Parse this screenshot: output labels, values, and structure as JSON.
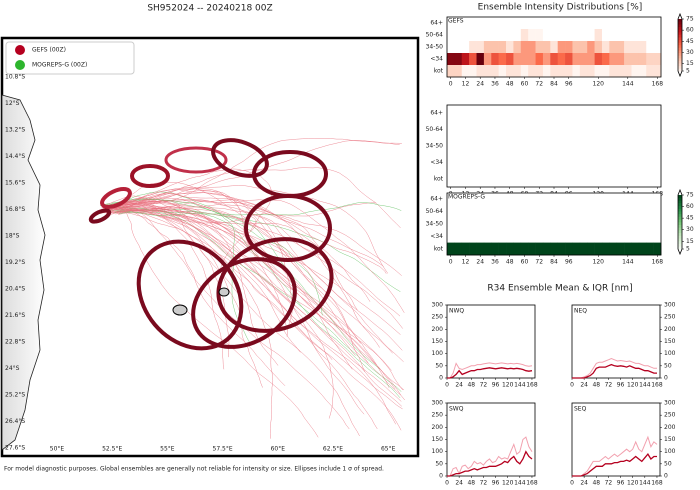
{
  "map": {
    "title": "SH952024 -- 20240218 00Z",
    "legend": [
      {
        "name": "GEFS (00Z)",
        "color": "#b5001f"
      },
      {
        "name": "MOGREPS-G (00Z)",
        "color": "#2db52d"
      }
    ],
    "lat_labels": [
      "10.8°S",
      "12°S",
      "13.2°S",
      "14.4°S",
      "15.6°S",
      "16.8°S",
      "18°S",
      "19.2°S",
      "20.4°S",
      "21.6°S",
      "22.8°S",
      "24°S",
      "25.2°S",
      "26.4°S",
      "27.6°S"
    ],
    "lon_labels": [
      "50°E",
      "52.5°E",
      "55°E",
      "57.5°E",
      "60°E",
      "62.5°E",
      "65°E"
    ],
    "footer": "For model diagnostic purposes. Global ensembles are generally not reliable for intensity or size. Ellipses include 1 σ of spread."
  },
  "intensity": {
    "title": "Ensemble Intensity Distributions [%]",
    "row_labels": [
      "64+",
      "50-64",
      "34-50",
      "<34",
      "kot"
    ],
    "hours": [
      0,
      6,
      12,
      18,
      24,
      30,
      36,
      42,
      48,
      54,
      60,
      66,
      72,
      78,
      84,
      90,
      96,
      102,
      108,
      114,
      120,
      126,
      132,
      138,
      144,
      150,
      156,
      162,
      168
    ],
    "xticks": [
      0,
      12,
      24,
      36,
      48,
      60,
      72,
      84,
      96,
      120,
      144,
      168
    ],
    "panels": [
      {
        "label": "GEFS",
        "colormap": "Reds",
        "colorbar_ticks": [
          75,
          60,
          45,
          30,
          15,
          5
        ],
        "rows": [
          [
            0,
            0,
            0,
            0,
            0,
            0,
            0,
            0,
            0,
            0,
            0,
            0,
            0,
            0,
            0,
            0,
            0,
            0,
            0,
            0,
            0,
            0,
            0,
            0,
            0,
            0,
            0,
            0,
            0
          ],
          [
            0,
            0,
            0,
            0,
            0,
            0,
            0,
            0,
            0,
            0,
            10,
            5,
            5,
            0,
            0,
            0,
            0,
            0,
            0,
            0,
            10,
            0,
            0,
            0,
            0,
            0,
            0,
            0,
            0
          ],
          [
            0,
            0,
            0,
            10,
            10,
            20,
            20,
            20,
            10,
            20,
            30,
            30,
            20,
            20,
            10,
            30,
            30,
            20,
            20,
            30,
            20,
            10,
            20,
            20,
            10,
            10,
            10,
            0,
            0
          ],
          [
            70,
            70,
            60,
            45,
            75,
            30,
            45,
            40,
            45,
            30,
            30,
            30,
            40,
            30,
            45,
            40,
            45,
            30,
            30,
            30,
            45,
            40,
            30,
            30,
            20,
            20,
            20,
            15,
            15
          ],
          [
            15,
            15,
            5,
            5,
            10,
            10,
            10,
            5,
            10,
            10,
            5,
            10,
            10,
            5,
            10,
            10,
            10,
            5,
            10,
            10,
            5,
            5,
            10,
            10,
            10,
            5,
            5,
            10,
            10
          ]
        ]
      },
      {
        "rows": []
      },
      {
        "label": "MOGREPS-G",
        "colormap": "Greens",
        "colorbar_ticks": [
          75,
          60,
          45,
          30,
          15,
          5
        ],
        "rows": [
          [
            0,
            0,
            0,
            0,
            0,
            0,
            0,
            0,
            0,
            0,
            0,
            0,
            0,
            0,
            0,
            0,
            0,
            0,
            0,
            0,
            0,
            0,
            0,
            0,
            0,
            0,
            0,
            0,
            0
          ],
          [
            0,
            0,
            0,
            0,
            0,
            0,
            0,
            0,
            0,
            0,
            0,
            0,
            0,
            0,
            0,
            0,
            0,
            0,
            0,
            0,
            0,
            0,
            0,
            0,
            0,
            0,
            0,
            0,
            0
          ],
          [
            0,
            0,
            0,
            0,
            0,
            0,
            0,
            0,
            0,
            0,
            0,
            0,
            0,
            0,
            0,
            0,
            0,
            0,
            0,
            0,
            0,
            0,
            0,
            0,
            0,
            0,
            0,
            0,
            0
          ],
          [
            0,
            0,
            0,
            0,
            0,
            0,
            0,
            0,
            0,
            0,
            0,
            0,
            0,
            0,
            0,
            0,
            0,
            0,
            0,
            0,
            0,
            0,
            0,
            0,
            0,
            0,
            0,
            0,
            0
          ],
          [
            100,
            100,
            100,
            100,
            100,
            100,
            100,
            100,
            100,
            100,
            100,
            100,
            100,
            100,
            100,
            100,
            100,
            100,
            100,
            100,
            100,
            100,
            100,
            100,
            100,
            100,
            100,
            100,
            100
          ]
        ]
      }
    ]
  },
  "r34": {
    "title": "R34 Ensemble Mean & IQR [nm]",
    "ylim": [
      0,
      300
    ],
    "yticks": [
      0,
      50,
      100,
      150,
      200,
      250,
      300
    ],
    "xlim": [
      0,
      174
    ],
    "xticks": [
      0,
      24,
      48,
      72,
      96,
      120,
      144,
      168
    ],
    "hours": [
      0,
      6,
      12,
      18,
      24,
      30,
      36,
      42,
      48,
      54,
      60,
      66,
      72,
      78,
      84,
      90,
      96,
      102,
      108,
      114,
      120,
      126,
      132,
      138,
      144,
      150,
      156,
      162,
      168
    ],
    "mean_color": "#b5001f",
    "iqr_color": "#f2a0ae",
    "quadrants": [
      {
        "name": "NWQ",
        "mean": [
          0,
          0,
          5,
          15,
          30,
          15,
          20,
          25,
          30,
          30,
          35,
          35,
          38,
          40,
          42,
          40,
          38,
          40,
          42,
          40,
          38,
          40,
          38,
          40,
          38,
          35,
          30,
          28,
          30
        ],
        "iqr_high": [
          0,
          0,
          20,
          60,
          40,
          35,
          40,
          45,
          50,
          50,
          55,
          55,
          58,
          60,
          62,
          60,
          58,
          60,
          62,
          60,
          58,
          60,
          58,
          60,
          58,
          55,
          50,
          48,
          50
        ]
      },
      {
        "name": "NEQ",
        "mean": [
          0,
          0,
          0,
          0,
          0,
          5,
          10,
          20,
          40,
          45,
          45,
          45,
          50,
          55,
          50,
          48,
          50,
          48,
          45,
          50,
          45,
          40,
          40,
          35,
          30,
          30,
          25,
          20,
          20
        ],
        "iqr_high": [
          0,
          0,
          0,
          0,
          5,
          10,
          20,
          40,
          60,
          65,
          65,
          70,
          75,
          80,
          75,
          70,
          72,
          70,
          68,
          70,
          65,
          60,
          60,
          55,
          50,
          50,
          45,
          40,
          40
        ]
      },
      {
        "name": "SWQ",
        "mean": [
          0,
          0,
          5,
          10,
          10,
          15,
          20,
          20,
          25,
          30,
          25,
          30,
          35,
          35,
          40,
          40,
          40,
          45,
          50,
          60,
          55,
          70,
          80,
          60,
          50,
          70,
          100,
          80,
          70
        ],
        "iqr_high": [
          0,
          0,
          30,
          35,
          10,
          40,
          45,
          30,
          40,
          60,
          50,
          55,
          45,
          60,
          70,
          55,
          60,
          80,
          70,
          75,
          70,
          100,
          130,
          90,
          100,
          150,
          160,
          120,
          100
        ]
      },
      {
        "name": "SEQ",
        "mean": [
          0,
          0,
          0,
          0,
          5,
          10,
          20,
          30,
          40,
          40,
          40,
          50,
          50,
          50,
          55,
          55,
          60,
          60,
          65,
          60,
          70,
          80,
          70,
          60,
          75,
          90,
          70,
          80,
          80
        ],
        "iqr_high": [
          0,
          0,
          0,
          0,
          10,
          20,
          40,
          60,
          60,
          60,
          70,
          80,
          70,
          80,
          90,
          80,
          90,
          100,
          110,
          100,
          110,
          140,
          110,
          100,
          130,
          160,
          120,
          140,
          130
        ]
      }
    ]
  }
}
